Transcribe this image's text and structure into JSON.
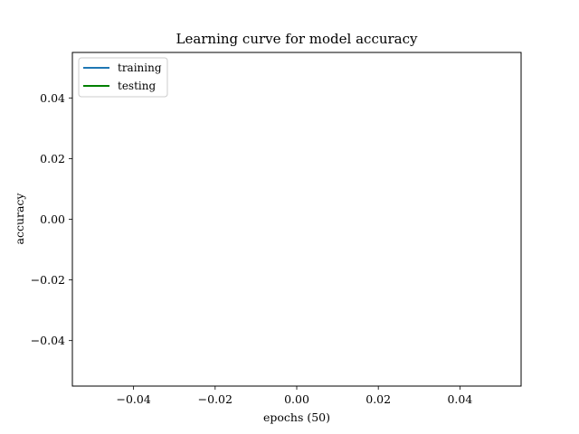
{
  "chart_data": {
    "type": "line",
    "title": "Learning curve for model accuracy",
    "xlabel": "epochs (50)",
    "ylabel": "accuracy",
    "xlim": [
      -0.055,
      0.055
    ],
    "ylim": [
      -0.055,
      0.055
    ],
    "xticks": [
      -0.04,
      -0.02,
      0.0,
      0.02,
      0.04
    ],
    "xtick_labels": [
      "−0.04",
      "−0.02",
      "0.00",
      "0.02",
      "0.04"
    ],
    "yticks": [
      -0.04,
      -0.02,
      0.0,
      0.02,
      0.04
    ],
    "ytick_labels": [
      "−0.04",
      "−0.02",
      "0.00",
      "0.02",
      "0.04"
    ],
    "grid": false,
    "legend_position": "upper left",
    "series": [
      {
        "name": "training",
        "color": "#1f77b4",
        "x": [],
        "y": []
      },
      {
        "name": "testing",
        "color": "#008000",
        "x": [],
        "y": []
      }
    ]
  }
}
